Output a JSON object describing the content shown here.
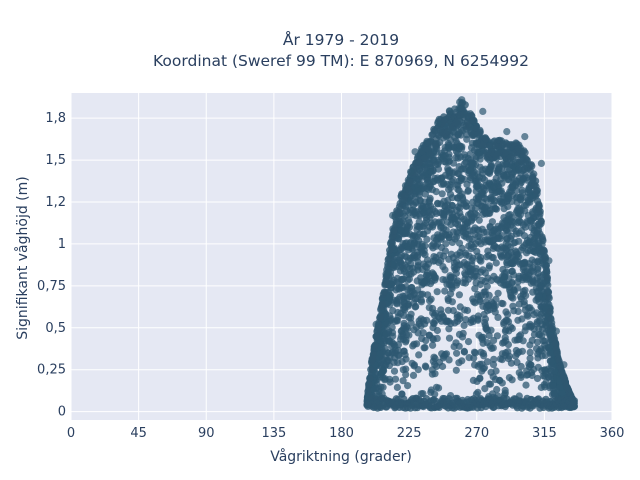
{
  "chart_data": {
    "type": "scatter",
    "title": "År 1979 - 2019",
    "subtitle": "Koordinat (Sweref 99 TM): E 870969, N 6254992",
    "xlabel": "Vågriktning (grader)",
    "ylabel": "Signifikant våghöjd (m)",
    "xlim": [
      0,
      360
    ],
    "ylim": [
      -0.05,
      1.9
    ],
    "x_ticks": [
      0,
      45,
      90,
      135,
      180,
      225,
      270,
      315,
      360
    ],
    "x_tick_labels": [
      "0",
      "45",
      "90",
      "135",
      "180",
      "225",
      "270",
      "315",
      "360"
    ],
    "y_ticks": [
      0,
      0.25,
      0.5,
      0.75,
      1,
      1.25,
      1.5,
      1.75
    ],
    "y_tick_labels": [
      "0",
      "0,25",
      "0,5",
      "0,75",
      "1",
      "1,2",
      "1,5",
      "1,8"
    ],
    "grid": true,
    "legend": "none",
    "colors": {
      "marker": "#2e5871",
      "plot_background": "#e5e8f3",
      "grid": "#ffffff",
      "text": "#2a3f5f"
    },
    "series": [
      {
        "envelope": {
          "direction": [
            197,
            200,
            205,
            210,
            215,
            220,
            225,
            230,
            235,
            240,
            245,
            250,
            255,
            260,
            265,
            270,
            275,
            280,
            285,
            290,
            295,
            300,
            305,
            310,
            315,
            320,
            325,
            330,
            335
          ],
          "max_height": [
            0.08,
            0.3,
            0.55,
            0.85,
            1.15,
            1.3,
            1.4,
            1.52,
            1.6,
            1.66,
            1.75,
            1.78,
            1.82,
            1.86,
            1.8,
            1.7,
            1.65,
            1.62,
            1.62,
            1.6,
            1.62,
            1.57,
            1.52,
            1.35,
            1.0,
            0.52,
            0.3,
            0.15,
            0.05
          ]
        },
        "outliers": [
          {
            "x": 214,
            "y": 1.17
          },
          {
            "x": 226,
            "y": 1.43
          },
          {
            "x": 229,
            "y": 1.55
          },
          {
            "x": 252,
            "y": 1.79
          },
          {
            "x": 260,
            "y": 1.86
          },
          {
            "x": 274,
            "y": 1.79
          },
          {
            "x": 290,
            "y": 1.67
          },
          {
            "x": 302,
            "y": 1.64
          },
          {
            "x": 313,
            "y": 1.48
          },
          {
            "x": 203,
            "y": 0.52
          },
          {
            "x": 323,
            "y": 0.48
          },
          {
            "x": 328,
            "y": 0.28
          },
          {
            "x": 211,
            "y": 0.83
          },
          {
            "x": 318,
            "y": 0.9
          },
          {
            "x": 244,
            "y": 1.72
          }
        ]
      }
    ]
  }
}
